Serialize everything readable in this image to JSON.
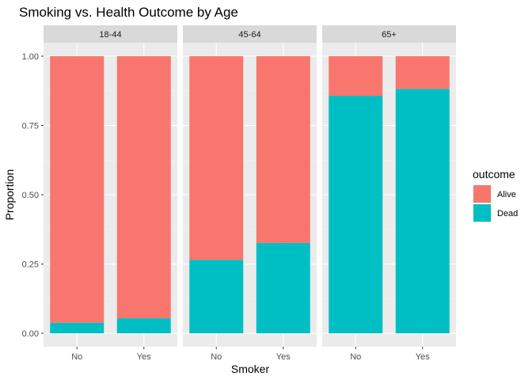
{
  "chart_data": {
    "type": "bar",
    "stacked": true,
    "title": "Smoking vs. Health Outcome by Age",
    "xlabel": "Smoker",
    "ylabel": "Proportion",
    "ylim": [
      0,
      1
    ],
    "yticks": [
      "0.00",
      "0.25",
      "0.50",
      "0.75",
      "1.00"
    ],
    "categories": [
      "No",
      "Yes"
    ],
    "legend": {
      "title": "outcome",
      "position": "right"
    },
    "colors": {
      "Alive": "#F8766D",
      "Dead": "#00BFC4"
    },
    "panels": [
      {
        "label": "18-44",
        "series": [
          {
            "name": "Alive",
            "values": [
              0.962,
              0.946
            ]
          },
          {
            "name": "Dead",
            "values": [
              0.038,
              0.054
            ]
          }
        ]
      },
      {
        "label": "45-64",
        "series": [
          {
            "name": "Alive",
            "values": [
              0.735,
              0.674
            ]
          },
          {
            "name": "Dead",
            "values": [
              0.265,
              0.326
            ]
          }
        ]
      },
      {
        "label": "65+",
        "series": [
          {
            "name": "Alive",
            "values": [
              0.143,
              0.118
            ]
          },
          {
            "name": "Dead",
            "values": [
              0.857,
              0.882
            ]
          }
        ]
      }
    ]
  }
}
